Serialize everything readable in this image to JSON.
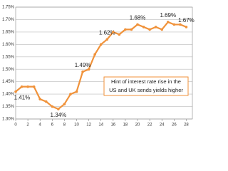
{
  "chart_data": {
    "type": "line",
    "x": [
      0,
      1,
      2,
      3,
      4,
      5,
      6,
      7,
      8,
      9,
      10,
      11,
      12,
      13,
      14,
      15,
      16,
      17,
      18,
      19,
      20,
      21,
      22,
      23,
      24,
      25,
      26,
      27,
      28
    ],
    "series": [
      {
        "color": "#f0923a",
        "values": [
          1.41,
          1.43,
          1.43,
          1.43,
          1.38,
          1.37,
          1.35,
          1.34,
          1.36,
          1.4,
          1.41,
          1.49,
          1.5,
          1.56,
          1.6,
          1.62,
          1.65,
          1.64,
          1.66,
          1.66,
          1.68,
          1.67,
          1.66,
          1.67,
          1.66,
          1.69,
          1.68,
          1.68,
          1.67
        ],
        "value_labels": [
          "1.41%",
          null,
          null,
          null,
          null,
          null,
          null,
          "1.34%",
          null,
          null,
          null,
          "1.49%",
          null,
          null,
          null,
          "1.62%",
          null,
          null,
          null,
          null,
          "1.68%",
          null,
          null,
          null,
          null,
          "1.69%",
          null,
          null,
          "1.67%"
        ]
      }
    ],
    "xlim": [
      0,
      29
    ],
    "xticks": [
      0,
      2,
      4,
      6,
      8,
      10,
      12,
      14,
      16,
      18,
      20,
      22,
      24,
      26,
      28
    ],
    "ylim": [
      1.3,
      1.75
    ],
    "yticks": [
      {
        "value": 1.3,
        "label": "1.30%"
      },
      {
        "value": 1.35,
        "label": "1.35%"
      },
      {
        "value": 1.4,
        "label": "1.40%"
      },
      {
        "value": 1.45,
        "label": "1.45%"
      },
      {
        "value": 1.5,
        "label": "1.50%"
      },
      {
        "value": 1.55,
        "label": "1.55%"
      },
      {
        "value": 1.6,
        "label": "1.60%"
      },
      {
        "value": 1.65,
        "label": "1.65%"
      },
      {
        "value": 1.7,
        "label": "1.70%"
      },
      {
        "value": 1.75,
        "label": "1.75%"
      }
    ],
    "grid": true,
    "annotation": [
      "Hint of interest rate rise in the",
      "US and UK sends yields higher"
    ]
  }
}
